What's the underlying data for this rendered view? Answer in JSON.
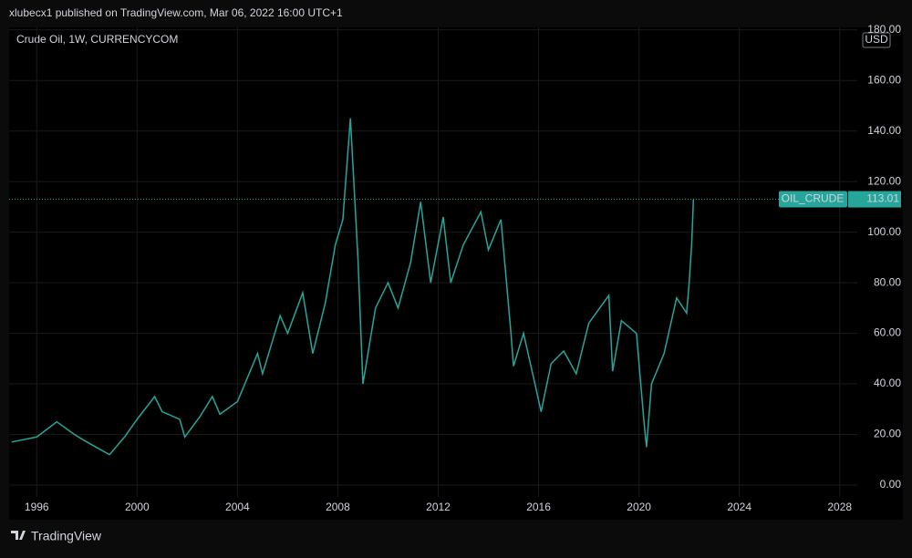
{
  "header": {
    "text": "xlubecx1 published on TradingView.com, Mar 06, 2022 16:00 UTC+1"
  },
  "footer": {
    "brand": "TradingView"
  },
  "chart_data": {
    "type": "line",
    "title": "Crude Oil, 1W, CURRENCYCOM",
    "currency": "USD",
    "x": [
      1995.0,
      1996.0,
      1996.8,
      1997.5,
      1998.0,
      1998.9,
      1999.5,
      2000.0,
      2000.7,
      2001.0,
      2001.7,
      2001.9,
      2002.5,
      2003.0,
      2003.3,
      2004.0,
      2004.8,
      2005.0,
      2005.7,
      2006.0,
      2006.6,
      2007.0,
      2007.5,
      2007.9,
      2008.2,
      2008.5,
      2008.8,
      2009.0,
      2009.5,
      2010.0,
      2010.4,
      2010.9,
      2011.3,
      2011.7,
      2012.2,
      2012.5,
      2013.0,
      2013.7,
      2014.0,
      2014.5,
      2014.9,
      2015.0,
      2015.4,
      2015.9,
      2016.1,
      2016.5,
      2017.0,
      2017.5,
      2018.0,
      2018.8,
      2018.95,
      2019.3,
      2019.9,
      2020.2,
      2020.3,
      2020.5,
      2021.0,
      2021.5,
      2021.9,
      2022.0,
      2022.1,
      2022.17
    ],
    "series": [
      {
        "name": "OIL_CRUDE",
        "color": "#26a69a",
        "values": [
          17,
          19,
          25,
          20,
          17,
          12,
          19,
          26,
          35,
          29,
          26,
          19,
          27,
          35,
          28,
          33,
          52,
          44,
          67,
          60,
          76,
          52,
          72,
          95,
          105,
          145,
          90,
          40,
          70,
          80,
          70,
          88,
          112,
          80,
          106,
          80,
          95,
          108,
          93,
          105,
          60,
          47,
          60,
          38,
          29,
          48,
          53,
          44,
          64,
          75,
          45,
          65,
          60,
          25,
          15,
          40,
          52,
          74,
          68,
          80,
          95,
          113.01
        ]
      }
    ],
    "last_value": 113.01,
    "xlim": [
      1994.9,
      2028.7
    ],
    "xticks": [
      1996,
      2000,
      2004,
      2008,
      2012,
      2016,
      2020,
      2024,
      2028
    ],
    "ylim": [
      -4.7,
      181
    ],
    "yticks": [
      {
        "value": 0,
        "label": "0.00"
      },
      {
        "value": 20,
        "label": "20.00"
      },
      {
        "value": 40,
        "label": "40.00"
      },
      {
        "value": 60,
        "label": "60.00"
      },
      {
        "value": 80,
        "label": "80.00"
      },
      {
        "value": 100,
        "label": "100.00"
      },
      {
        "value": 120,
        "label": "120.00"
      },
      {
        "value": 140,
        "label": "140.00"
      },
      {
        "value": 160,
        "label": "160.00"
      },
      {
        "value": 180,
        "label": "180.00"
      }
    ],
    "last_value_label": "113.01",
    "grid": true
  }
}
